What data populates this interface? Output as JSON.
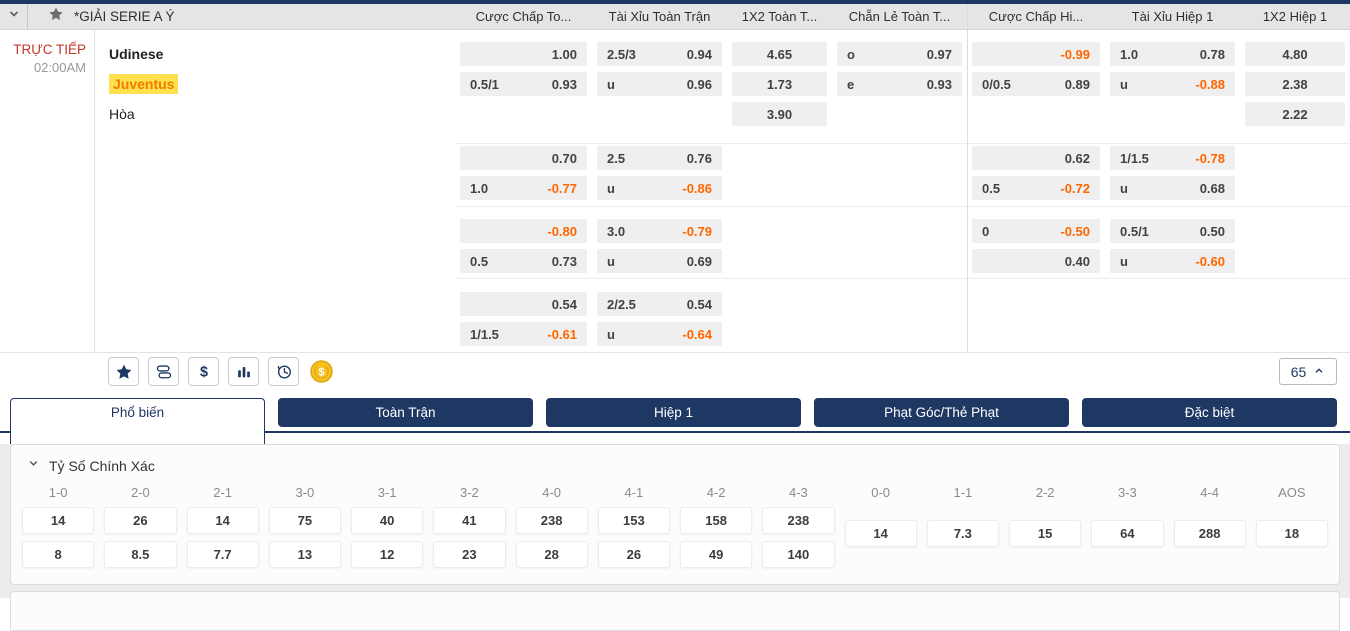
{
  "header": {
    "league": "*GIẢI SERIE A Ý"
  },
  "match": {
    "status": "TRỰC TIẾP",
    "time": "02:00AM",
    "home": "Udinese",
    "away": "Juventus",
    "draw": "Hòa"
  },
  "odds_table": {
    "column_headers": [
      "Cược Chấp To...",
      "Tài Xỉu Toàn Trận",
      "1X2 Toàn T...",
      "Chẵn Lẻ Toàn T...",
      "Cược Chấp Hi...",
      "Tài Xỉu Hiệp 1",
      "1X2 Hiệp 1"
    ],
    "groups": [
      {
        "hdp_ft": [
          {
            "label": "",
            "odds": "1.00"
          },
          {
            "label": "0.5/1",
            "odds": "0.93"
          }
        ],
        "ou_ft": [
          {
            "label": "2.5/3",
            "odds": "0.94"
          },
          {
            "label": "u",
            "odds": "0.96"
          }
        ],
        "x12_ft": [
          "4.65",
          "1.73",
          "3.90"
        ],
        "oe_ft": [
          {
            "label": "o",
            "odds": "0.97"
          },
          {
            "label": "e",
            "odds": "0.93"
          }
        ],
        "hdp_h1": [
          {
            "label": "",
            "odds": "-0.99"
          },
          {
            "label": "0/0.5",
            "odds": "0.89"
          }
        ],
        "ou_h1": [
          {
            "label": "1.0",
            "odds": "0.78"
          },
          {
            "label": "u",
            "odds": "-0.88"
          }
        ],
        "x12_h1": [
          "4.80",
          "2.38",
          "2.22"
        ]
      },
      {
        "hdp_ft": [
          {
            "label": "",
            "odds": "0.70"
          },
          {
            "label": "1.0",
            "odds": "-0.77"
          }
        ],
        "ou_ft": [
          {
            "label": "2.5",
            "odds": "0.76"
          },
          {
            "label": "u",
            "odds": "-0.86"
          }
        ],
        "x12_ft": [],
        "oe_ft": [],
        "hdp_h1": [
          {
            "label": "",
            "odds": "0.62"
          },
          {
            "label": "0.5",
            "odds": "-0.72"
          }
        ],
        "ou_h1": [
          {
            "label": "1/1.5",
            "odds": "-0.78"
          },
          {
            "label": "u",
            "odds": "0.68"
          }
        ],
        "x12_h1": []
      },
      {
        "hdp_ft": [
          {
            "label": "",
            "odds": "-0.80"
          },
          {
            "label": "0.5",
            "odds": "0.73"
          }
        ],
        "ou_ft": [
          {
            "label": "3.0",
            "odds": "-0.79"
          },
          {
            "label": "u",
            "odds": "0.69"
          }
        ],
        "x12_ft": [],
        "oe_ft": [],
        "hdp_h1": [
          {
            "label": "0",
            "odds": "-0.50"
          },
          {
            "label": "",
            "odds": "0.40"
          }
        ],
        "ou_h1": [
          {
            "label": "0.5/1",
            "odds": "0.50"
          },
          {
            "label": "u",
            "odds": "-0.60"
          }
        ],
        "x12_h1": []
      },
      {
        "hdp_ft": [
          {
            "label": "",
            "odds": "0.54"
          },
          {
            "label": "1/1.5",
            "odds": "-0.61"
          }
        ],
        "ou_ft": [
          {
            "label": "2/2.5",
            "odds": "0.54"
          },
          {
            "label": "u",
            "odds": "-0.64"
          }
        ],
        "x12_ft": [],
        "oe_ft": [],
        "hdp_h1": [],
        "ou_h1": [],
        "x12_h1": []
      }
    ]
  },
  "toolbar": {
    "icons": [
      "star",
      "cash-stack",
      "dollar",
      "bar-chart",
      "history",
      "coin"
    ],
    "market_count": "65"
  },
  "tabs": [
    {
      "id": "pho-bien",
      "label": "Phổ biến",
      "active": true
    },
    {
      "id": "toan-tran",
      "label": "Toàn Trận",
      "active": false
    },
    {
      "id": "hiep-1",
      "label": "Hiệp 1",
      "active": false
    },
    {
      "id": "phat-goc-the-phat",
      "label": "Phạt Góc/Thẻ Phạt",
      "active": false
    },
    {
      "id": "dac-biet",
      "label": "Đặc biệt",
      "active": false
    }
  ],
  "correct_score": {
    "title": "Tỷ Số Chính Xác",
    "columns": [
      {
        "label": "1-0",
        "values": [
          "14",
          "8"
        ]
      },
      {
        "label": "2-0",
        "values": [
          "26",
          "8.5"
        ]
      },
      {
        "label": "2-1",
        "values": [
          "14",
          "7.7"
        ]
      },
      {
        "label": "3-0",
        "values": [
          "75",
          "13"
        ]
      },
      {
        "label": "3-1",
        "values": [
          "40",
          "12"
        ]
      },
      {
        "label": "3-2",
        "values": [
          "41",
          "23"
        ]
      },
      {
        "label": "4-0",
        "values": [
          "238",
          "28"
        ]
      },
      {
        "label": "4-1",
        "values": [
          "153",
          "26"
        ]
      },
      {
        "label": "4-2",
        "values": [
          "158",
          "49"
        ]
      },
      {
        "label": "4-3",
        "values": [
          "238",
          "140"
        ]
      },
      {
        "label": "0-0",
        "values": [
          "14"
        ]
      },
      {
        "label": "1-1",
        "values": [
          "7.3"
        ]
      },
      {
        "label": "2-2",
        "values": [
          "15"
        ]
      },
      {
        "label": "3-3",
        "values": [
          "64"
        ]
      },
      {
        "label": "4-4",
        "values": [
          "288"
        ]
      },
      {
        "label": "AOS",
        "values": [
          "18"
        ]
      }
    ]
  },
  "colors": {
    "accent_navy": "#1f3863",
    "odds_negative": "#ff6600",
    "live_red": "#c5342b",
    "highlight_bg": "#ffe14e",
    "highlight_text": "#ef7c00"
  }
}
